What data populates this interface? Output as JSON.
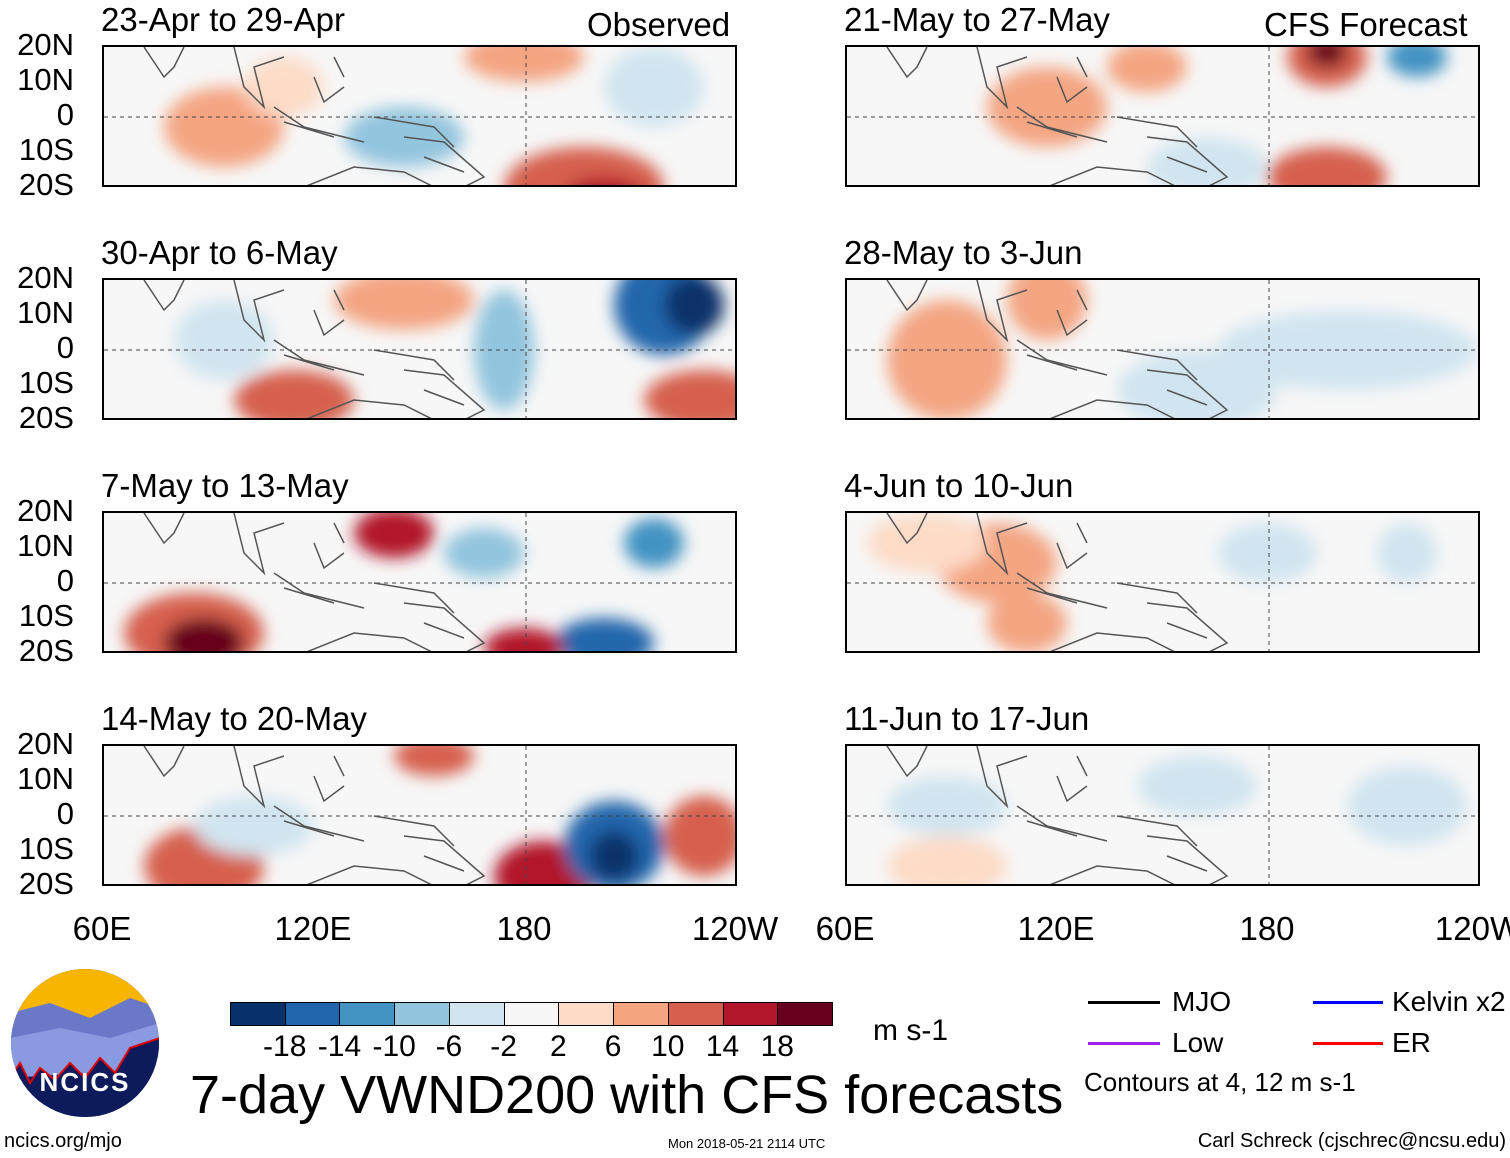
{
  "header": {
    "observed_label": "Observed",
    "forecast_label": "CFS Forecast"
  },
  "chart_data": {
    "type": "heatmap",
    "title": "7-day VWND200 with CFS forecasts",
    "variable": "VWND200",
    "units": "m s-1",
    "panels": [
      {
        "period": "23-Apr to 29-Apr",
        "kind": "Observed"
      },
      {
        "period": "30-Apr to 6-May",
        "kind": "Observed"
      },
      {
        "period": "7-May to 13-May",
        "kind": "Observed"
      },
      {
        "period": "14-May to 20-May",
        "kind": "Observed"
      },
      {
        "period": "21-May to 27-May",
        "kind": "CFS Forecast"
      },
      {
        "period": "28-May to 3-Jun",
        "kind": "CFS Forecast"
      },
      {
        "period": "4-Jun to 10-Jun",
        "kind": "CFS Forecast"
      },
      {
        "period": "11-Jun to 17-Jun",
        "kind": "CFS Forecast"
      }
    ],
    "y_ticks": [
      "20N",
      "10N",
      "0",
      "10S",
      "20S"
    ],
    "x_ticks": [
      "60E",
      "120E",
      "180",
      "120W"
    ],
    "colorbar": {
      "levels": [
        "-18",
        "-14",
        "-10",
        "-6",
        "-2",
        "2",
        "6",
        "10",
        "14",
        "18"
      ],
      "colors": [
        "#08306b",
        "#2166ac",
        "#4393c3",
        "#92c5de",
        "#d1e5f0",
        "#f7f7f7",
        "#fddbc7",
        "#f4a582",
        "#d6604d",
        "#b2182b",
        "#67001f"
      ]
    },
    "legend": [
      {
        "label": "MJO",
        "color": "#000000"
      },
      {
        "label": "Kelvin x2",
        "color": "#0000ff"
      },
      {
        "label": "Low",
        "color": "#a020f0"
      },
      {
        "label": "ER",
        "color": "#ff0000"
      }
    ],
    "contour_note": "Contours at 4, 12 m s-1"
  },
  "footer": {
    "logo_text": "NCICS",
    "url": "ncics.org/mjo",
    "timestamp": "Mon 2018-05-21 2114 UTC",
    "author": "Carl Schreck (cjschrec@ncsu.edu)"
  }
}
